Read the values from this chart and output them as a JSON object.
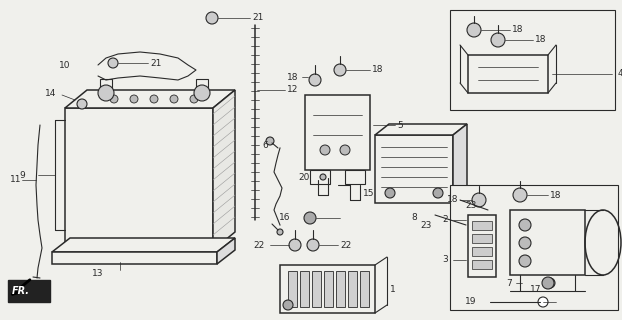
{
  "bg_color": "#f0f0ec",
  "lc": "#2a2a2a",
  "white": "#ffffff",
  "gray_light": "#d8d8d8",
  "gray_med": "#aaaaaa"
}
